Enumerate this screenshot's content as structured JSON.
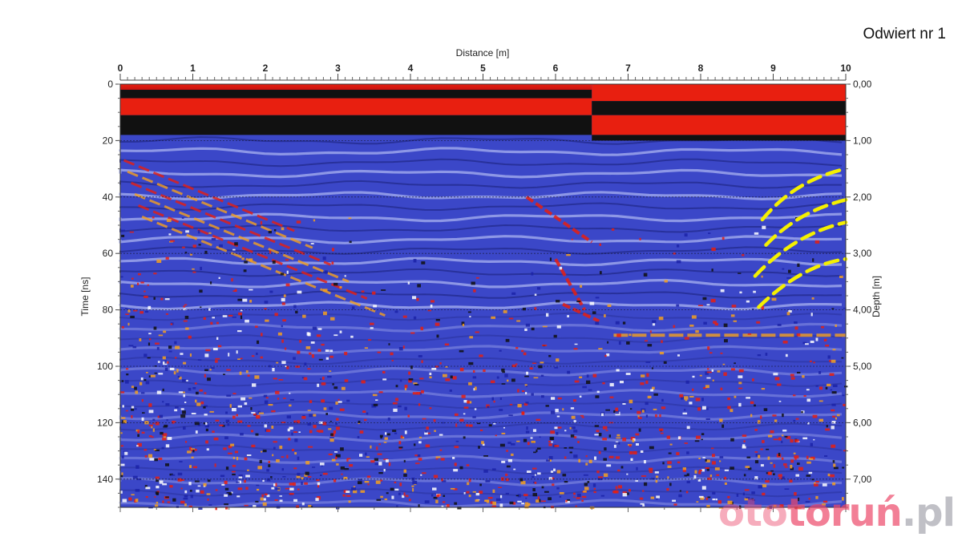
{
  "slide": {
    "title": "Odwiert nr 1"
  },
  "watermark": {
    "part1": "oto",
    "part2": "toruń",
    "part3": ".pl"
  },
  "chart_data": {
    "type": "heatmap",
    "title": "",
    "xlabel": "Distance [m]",
    "ylabel": "Time [ns]",
    "y2label": "Depth [m]",
    "xlim": [
      0,
      10
    ],
    "ylim": [
      0,
      150
    ],
    "y2lim": [
      0,
      7.5
    ],
    "x_ticks": [
      "0",
      "1",
      "2",
      "3",
      "4",
      "5",
      "6",
      "7",
      "8",
      "9",
      "10"
    ],
    "y_ticks": [
      "0",
      "20",
      "40",
      "60",
      "80",
      "100",
      "120",
      "140"
    ],
    "y2_ticks": [
      "0,00",
      "1,00",
      "2,00",
      "3,00",
      "4,00",
      "5,00",
      "6,00",
      "7,00"
    ],
    "grid": true,
    "colors": {
      "background_blue": "#3b47c8",
      "light_band": "#aab2f0",
      "dark_band": "#111111",
      "hot": "#e81f10",
      "orange": "#f5a020",
      "highlight_dashes": "#f5f000"
    },
    "annotations": {
      "highlighted_hyperbolas": 4,
      "highlight_style": "yellow dashed arcs",
      "highlight_x_range_m": [
        8.7,
        10
      ],
      "highlight_time_range_ns": [
        30,
        80
      ]
    }
  }
}
